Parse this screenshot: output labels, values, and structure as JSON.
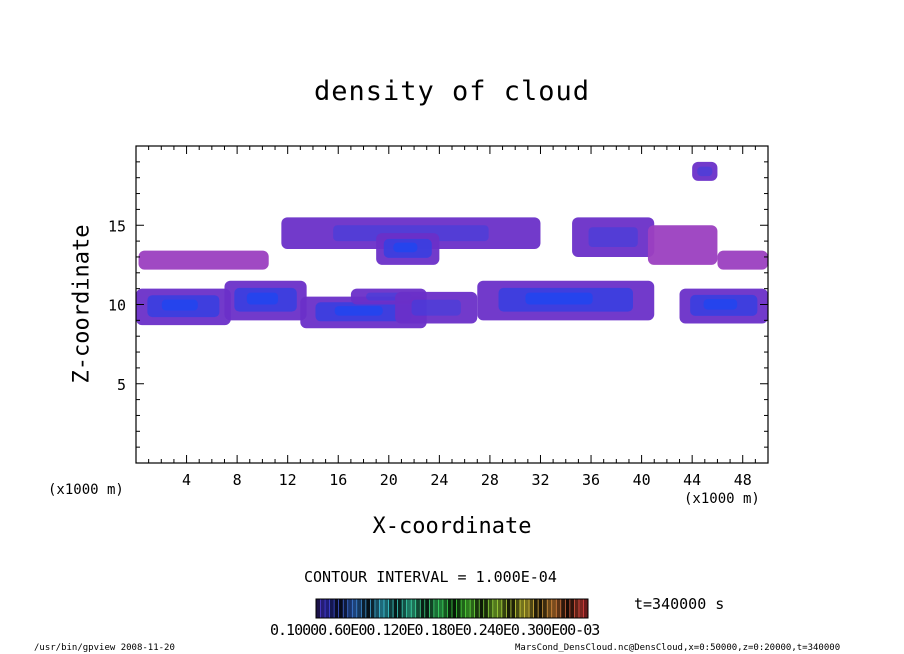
{
  "chart_data": {
    "type": "heatmap",
    "title": "density of cloud",
    "xlabel": "X-coordinate",
    "ylabel": "Z-coordinate",
    "x_unit_left": "(x1000 m)",
    "x_unit_right": "(x1000 m)",
    "xlim": [
      0,
      50
    ],
    "ylim": [
      0,
      20
    ],
    "x_ticks": [
      4,
      8,
      12,
      16,
      20,
      24,
      28,
      32,
      36,
      40,
      44,
      48
    ],
    "y_ticks": [
      5,
      10,
      15
    ],
    "contour_interval": "CONTOUR INTERVAL = 1.000E-04",
    "time": "t=340000 s",
    "colorbar_labels": "0.10000e-605 0e-1 0 0 e-1 0 0 e-2 0 0 e-3 0 0 e-03",
    "colorbar_text": "0.10000.60E00.120E0.180E0.240E0.300E00-03",
    "colors": {
      "light": "#9b3fc0",
      "mid": "#6a2fc8",
      "dense": "#3a3fe0",
      "core": "#1f46f0"
    },
    "cloud_regions": [
      {
        "x": [
          0.0,
          7.5
        ],
        "z": [
          8.7,
          11.0
        ],
        "level": "dense"
      },
      {
        "x": [
          0.2,
          10.5
        ],
        "z": [
          12.2,
          13.4
        ],
        "level": "light"
      },
      {
        "x": [
          7.0,
          13.5
        ],
        "z": [
          9.0,
          11.5
        ],
        "level": "dense"
      },
      {
        "x": [
          13.0,
          23.0
        ],
        "z": [
          8.5,
          10.5
        ],
        "level": "dense"
      },
      {
        "x": [
          17.0,
          23.0
        ],
        "z": [
          10.0,
          11.0
        ],
        "level": "mid"
      },
      {
        "x": [
          20.5,
          27.0
        ],
        "z": [
          8.8,
          10.8
        ],
        "level": "mid"
      },
      {
        "x": [
          11.5,
          32.0
        ],
        "z": [
          13.5,
          15.5
        ],
        "level": "mid"
      },
      {
        "x": [
          19.0,
          24.0
        ],
        "z": [
          12.5,
          14.5
        ],
        "level": "dense"
      },
      {
        "x": [
          27.0,
          41.0
        ],
        "z": [
          9.0,
          11.5
        ],
        "level": "dense"
      },
      {
        "x": [
          34.5,
          41.0
        ],
        "z": [
          13.0,
          15.5
        ],
        "level": "mid"
      },
      {
        "x": [
          40.5,
          46.0
        ],
        "z": [
          12.5,
          15.0
        ],
        "level": "light"
      },
      {
        "x": [
          44.0,
          46.0
        ],
        "z": [
          17.8,
          19.0
        ],
        "level": "mid"
      },
      {
        "x": [
          46.0,
          50.0
        ],
        "z": [
          12.2,
          13.4
        ],
        "level": "light"
      },
      {
        "x": [
          43.0,
          50.0
        ],
        "z": [
          8.8,
          11.0
        ],
        "level": "dense"
      }
    ]
  },
  "footer": {
    "left": "/usr/bin/gpview   2008-11-20",
    "right": "MarsCond_DensCloud.nc@DensCloud,x=0:50000,z=0:20000,t=340000"
  }
}
